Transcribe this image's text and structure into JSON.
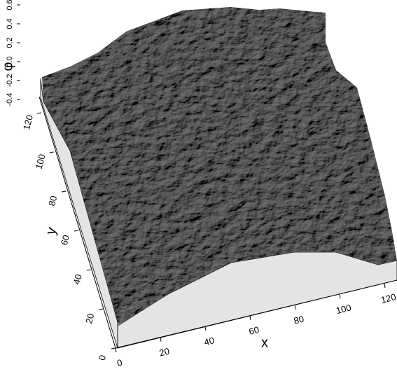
{
  "chart_data": {
    "type": "surface",
    "x_label": "x",
    "y_label": "y",
    "z_label": "φ",
    "xlim": [
      0,
      120
    ],
    "xticks": [
      0,
      20,
      40,
      60,
      80,
      100,
      120
    ],
    "ylim": [
      0,
      120
    ],
    "yticks": [
      0,
      20,
      40,
      60,
      80,
      100,
      120
    ],
    "zlim": [
      -0.4,
      0.6
    ],
    "zticks": [
      -0.4,
      -0.2,
      {
        "value": 0,
        "label": "0.0"
      },
      0.2,
      0.4,
      0.6
    ],
    "color": "#8a8a8a"
  }
}
